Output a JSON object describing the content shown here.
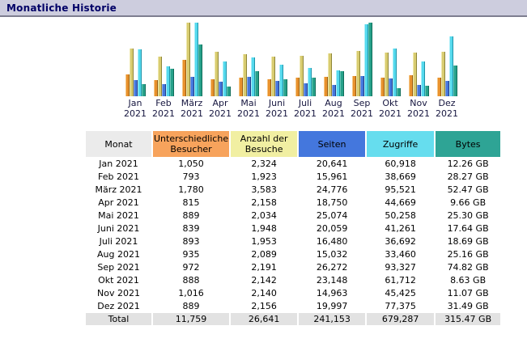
{
  "header": {
    "title": "Monatliche Historie"
  },
  "chart_data": {
    "type": "bar",
    "title": "Monatliche Historie",
    "xlabel": "Monat",
    "ylabel": "",
    "legend_position": "none",
    "grid": false,
    "note": "Jede Skalengruppe ist auf ihr eigenes Maximum normiert (AWStats-Stil)",
    "categories": [
      "Jan 2021",
      "Feb 2021",
      "März 2021",
      "Apr 2021",
      "Mai 2021",
      "Juni 2021",
      "Juli 2021",
      "Aug 2021",
      "Sep 2021",
      "Okt 2021",
      "Nov 2021",
      "Dez 2021"
    ],
    "series": [
      {
        "key": "visitors",
        "name": "Unterschiedliche Besucher",
        "scale_group": "visits",
        "color": {
          "body": "#e8912d",
          "light": "#f6c887",
          "dark": "#9a5f10"
        },
        "values": [
          1050,
          793,
          1780,
          815,
          889,
          839,
          893,
          935,
          972,
          888,
          1016,
          889
        ]
      },
      {
        "key": "visits",
        "name": "Anzahl der Besuche",
        "scale_group": "visits",
        "color": {
          "body": "#d8cc70",
          "light": "#efe8ae",
          "dark": "#8e8538"
        },
        "values": [
          2324,
          1923,
          3583,
          2158,
          2034,
          1948,
          1953,
          2089,
          2191,
          2142,
          2140,
          2156
        ]
      },
      {
        "key": "pages",
        "name": "Seiten",
        "scale_group": "hits",
        "color": {
          "body": "#4477dd",
          "light": "#8faae8",
          "dark": "#223c88"
        },
        "values": [
          20641,
          15961,
          24776,
          18750,
          25074,
          20059,
          16480,
          15032,
          26272,
          23148,
          14963,
          19997
        ]
      },
      {
        "key": "hits",
        "name": "Zugriffe",
        "scale_group": "hits",
        "color": {
          "body": "#55d9ed",
          "light": "#aaeef8",
          "dark": "#1e93a8"
        },
        "values": [
          60918,
          38669,
          95521,
          44669,
          50258,
          41261,
          36692,
          33460,
          93327,
          61712,
          45425,
          77375
        ]
      },
      {
        "key": "bytes",
        "name": "Bytes",
        "scale_group": "bytes",
        "unit": "GB",
        "color": {
          "body": "#27a18a",
          "light": "#66c6b4",
          "dark": "#0e6b58"
        },
        "values": [
          12.26,
          28.27,
          52.47,
          9.66,
          25.3,
          17.64,
          18.69,
          25.16,
          74.82,
          8.63,
          11.07,
          31.49
        ]
      }
    ]
  },
  "table": {
    "columns": [
      {
        "label": "Monat",
        "bg": "#ebebeb"
      },
      {
        "label": "Unterschiedliche Besucher",
        "bg": "#f7a35c"
      },
      {
        "label": "Anzahl der Besuche",
        "bg": "#f1efa2"
      },
      {
        "label": "Seiten",
        "bg": "#4477dd"
      },
      {
        "label": "Zugriffe",
        "bg": "#66ddee"
      },
      {
        "label": "Bytes",
        "bg": "#2ea495"
      }
    ],
    "rows": [
      {
        "monat": "Jan 2021",
        "cells": [
          "1,050",
          "2,324",
          "20,641",
          "60,918",
          "12.26 GB"
        ]
      },
      {
        "monat": "Feb 2021",
        "cells": [
          "793",
          "1,923",
          "15,961",
          "38,669",
          "28.27 GB"
        ]
      },
      {
        "monat": "März 2021",
        "cells": [
          "1,780",
          "3,583",
          "24,776",
          "95,521",
          "52.47 GB"
        ]
      },
      {
        "monat": "Apr 2021",
        "cells": [
          "815",
          "2,158",
          "18,750",
          "44,669",
          "9.66 GB"
        ]
      },
      {
        "monat": "Mai 2021",
        "cells": [
          "889",
          "2,034",
          "25,074",
          "50,258",
          "25.30 GB"
        ]
      },
      {
        "monat": "Juni 2021",
        "cells": [
          "839",
          "1,948",
          "20,059",
          "41,261",
          "17.64 GB"
        ]
      },
      {
        "monat": "Juli 2021",
        "cells": [
          "893",
          "1,953",
          "16,480",
          "36,692",
          "18.69 GB"
        ]
      },
      {
        "monat": "Aug 2021",
        "cells": [
          "935",
          "2,089",
          "15,032",
          "33,460",
          "25.16 GB"
        ]
      },
      {
        "monat": "Sep 2021",
        "cells": [
          "972",
          "2,191",
          "26,272",
          "93,327",
          "74.82 GB"
        ]
      },
      {
        "monat": "Okt 2021",
        "cells": [
          "888",
          "2,142",
          "23,148",
          "61,712",
          "8.63 GB"
        ]
      },
      {
        "monat": "Nov 2021",
        "cells": [
          "1,016",
          "2,140",
          "14,963",
          "45,425",
          "11.07 GB"
        ]
      },
      {
        "monat": "Dez 2021",
        "cells": [
          "889",
          "2,156",
          "19,997",
          "77,375",
          "31.49 GB"
        ]
      }
    ],
    "total": {
      "label": "Total",
      "cells": [
        "11,759",
        "26,641",
        "241,153",
        "679,287",
        "315.47 GB"
      ]
    }
  }
}
